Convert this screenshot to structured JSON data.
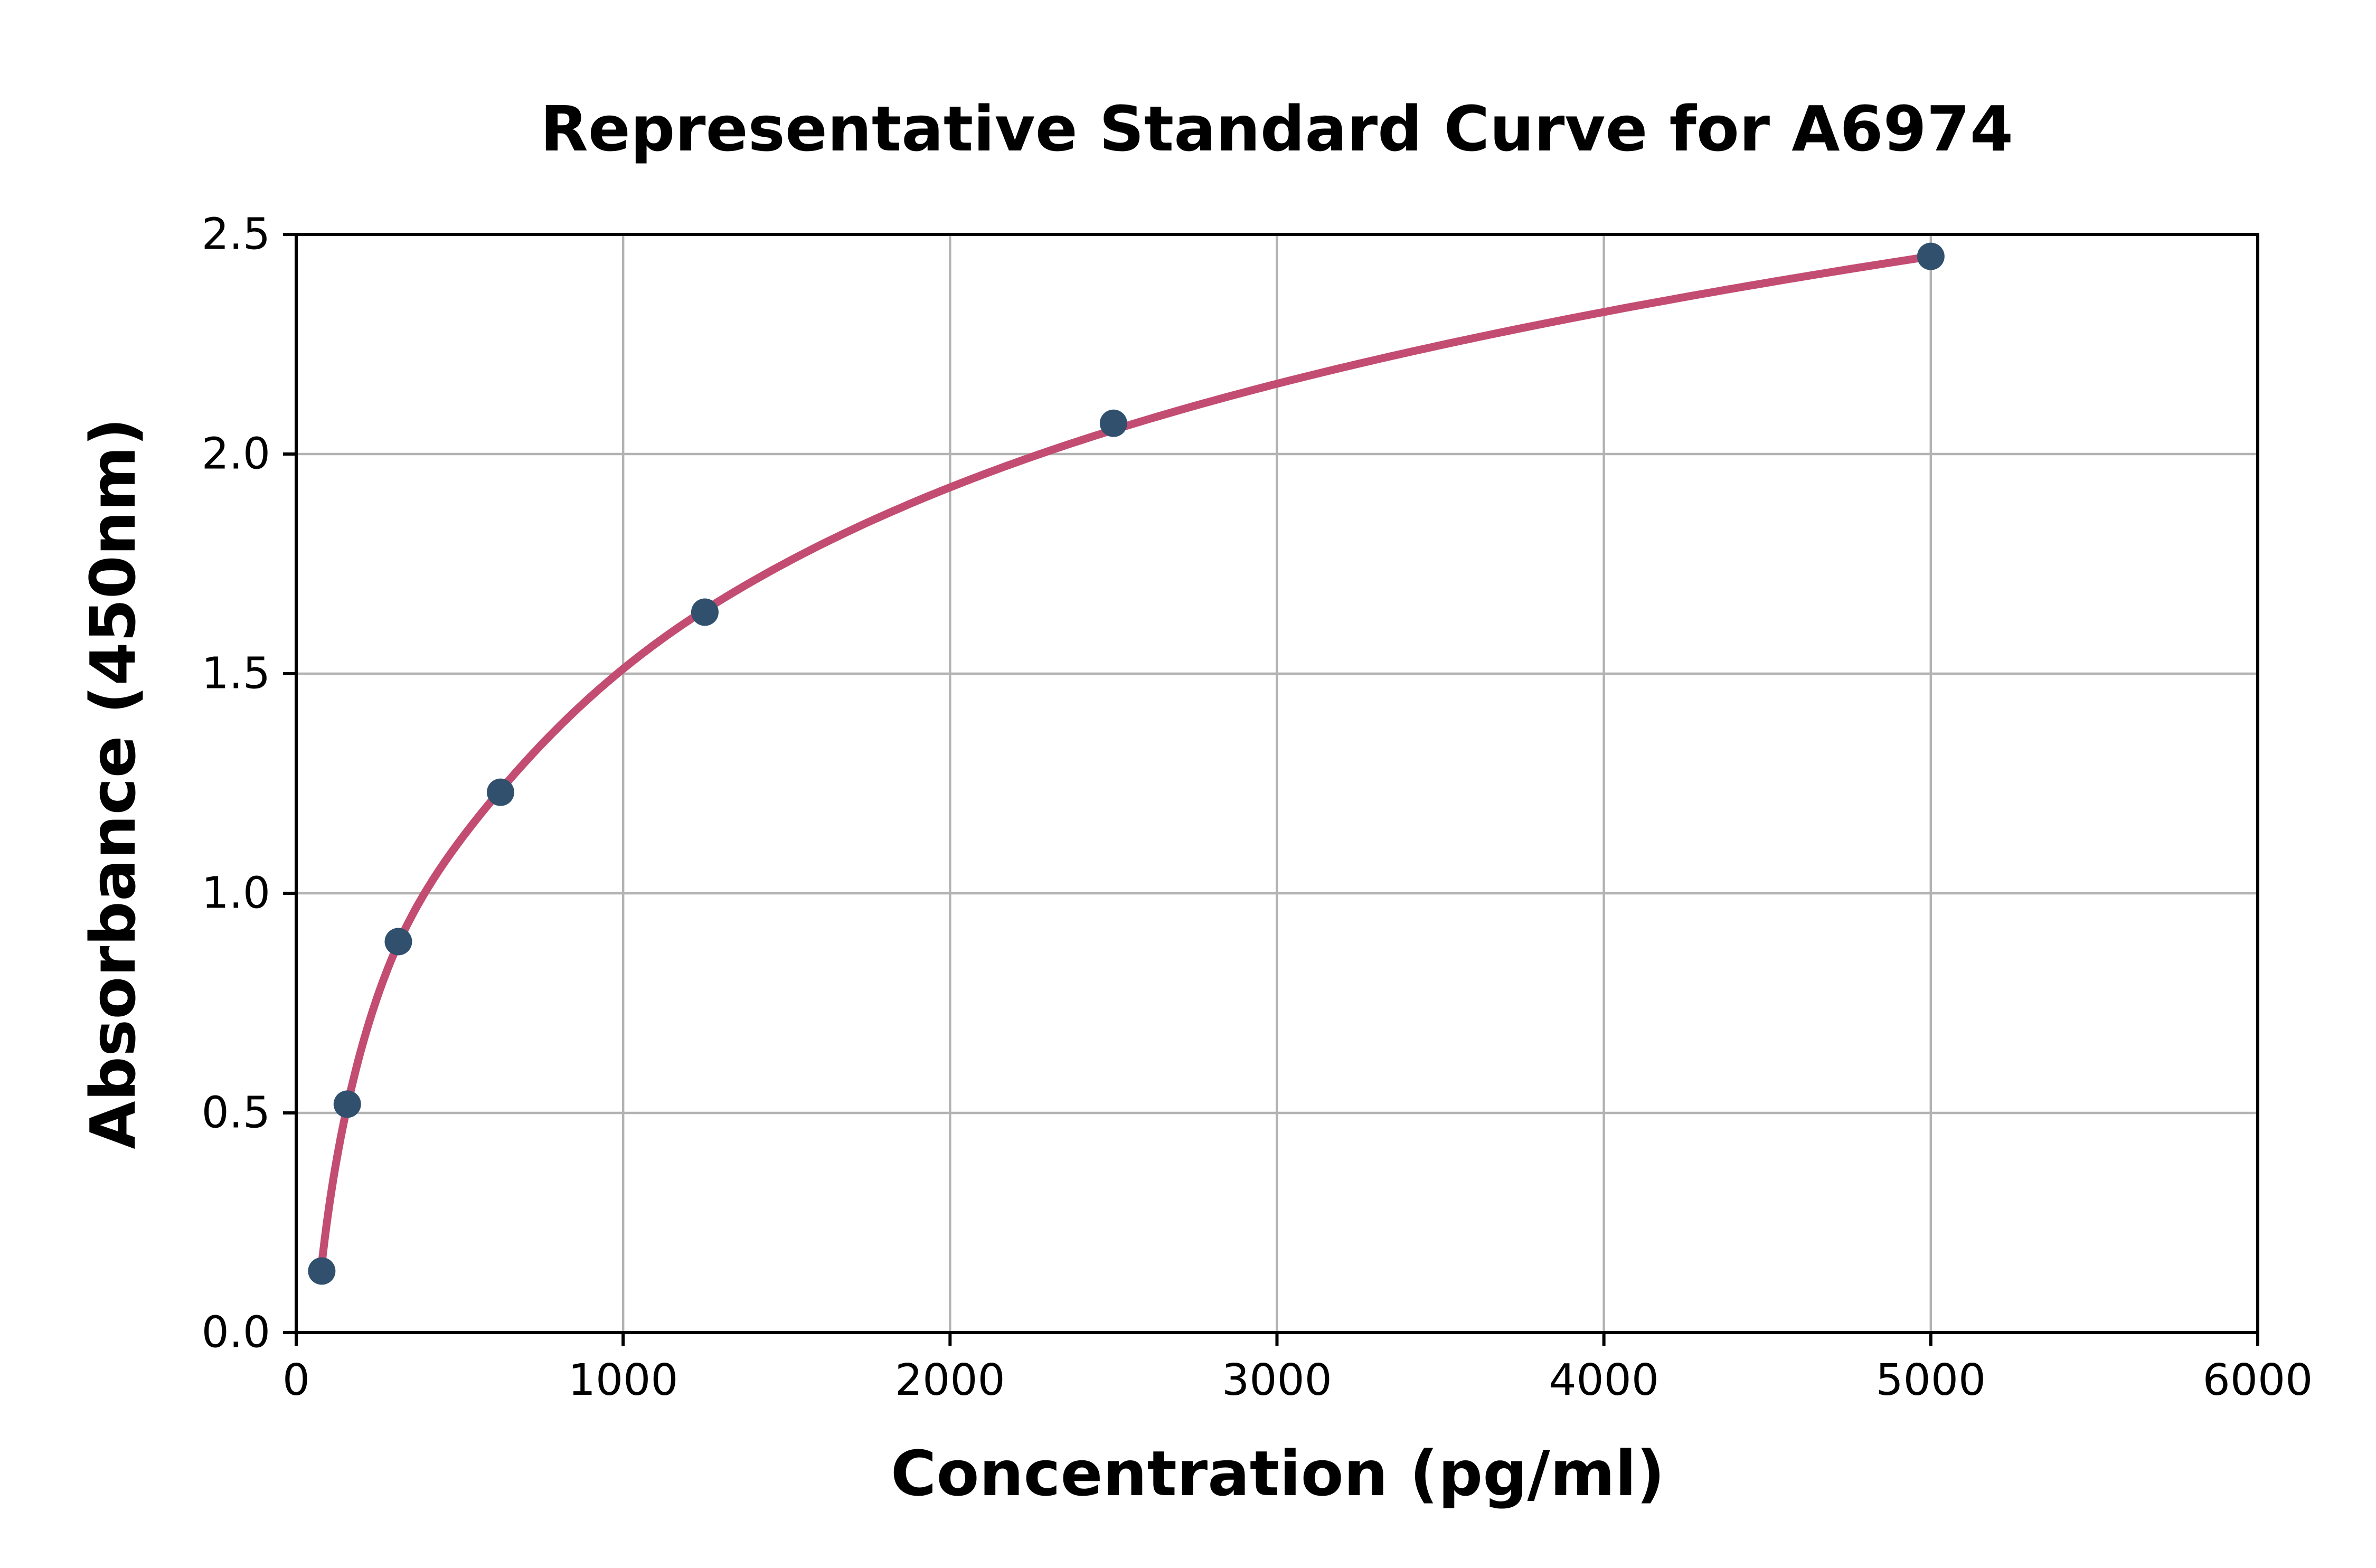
{
  "figure": {
    "background": "#ffffff"
  },
  "chart_data": {
    "type": "scatter",
    "title": "Representative Standard Curve for A6974",
    "xlabel": "Concentration (pg/ml)",
    "ylabel": "Absorbance (450nm)",
    "xlim": [
      0,
      6000
    ],
    "ylim": [
      0,
      2.5
    ],
    "xticks": [
      0,
      1000,
      2000,
      3000,
      4000,
      5000,
      6000
    ],
    "xtick_labels": [
      "0",
      "1000",
      "2000",
      "3000",
      "4000",
      "5000",
      "6000"
    ],
    "yticks": [
      0,
      0.5,
      1.0,
      1.5,
      2.0,
      2.5
    ],
    "ytick_labels": [
      "0.0",
      "0.5",
      "1.0",
      "1.5",
      "2.0",
      "2.5"
    ],
    "grid": true,
    "grid_color": "#b3b3b3",
    "axis_color": "#000000",
    "legend": null,
    "series": [
      {
        "name": "standard-data-points",
        "type": "scatter",
        "marker_color": "#30506e",
        "x": [
          78.13,
          156.25,
          312.5,
          625,
          1250,
          2500,
          5000
        ],
        "y": [
          0.14,
          0.52,
          0.89,
          1.23,
          1.64,
          2.07,
          2.45
        ]
      },
      {
        "name": "fitted-standard-curve",
        "type": "line",
        "line_color": "#c34d72",
        "x": [
          78,
          156,
          312,
          625,
          1250,
          2500,
          5000
        ],
        "y": [
          0.155,
          0.515,
          0.885,
          1.235,
          1.645,
          2.055,
          2.45
        ]
      }
    ]
  }
}
